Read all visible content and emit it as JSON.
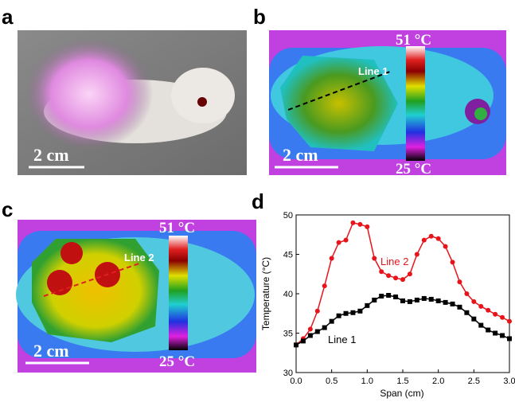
{
  "panels": [
    {
      "label": "a",
      "scale_bar": "2 cm"
    },
    {
      "label": "b",
      "scale_bar": "2 cm",
      "line_label": "Line 1",
      "colorbar_max": "51 °C",
      "colorbar_min": "25 °C"
    },
    {
      "label": "c",
      "scale_bar": "2 cm",
      "line_label": "Line 2",
      "colorbar_max": "51 °C",
      "colorbar_min": "25 °C"
    },
    {
      "label": "d"
    }
  ],
  "chart_data": {
    "type": "line",
    "x_label": "Span (cm)",
    "y_label": "Temperature (°C)",
    "x": [
      0,
      0.1,
      0.2,
      0.3,
      0.4,
      0.5,
      0.6,
      0.7,
      0.8,
      0.9,
      1.0,
      1.1,
      1.2,
      1.3,
      1.4,
      1.5,
      1.6,
      1.7,
      1.8,
      1.9,
      2.0,
      2.1,
      2.2,
      2.3,
      2.4,
      2.5,
      2.6,
      2.7,
      2.8,
      2.9,
      3.0
    ],
    "series": [
      {
        "name": "Line 2",
        "color": "#e8141c",
        "marker": "circle",
        "values": [
          33.5,
          34.3,
          35.5,
          37.8,
          41,
          44.5,
          46.5,
          46.8,
          49,
          48.8,
          48.5,
          44.5,
          42.8,
          42.3,
          42,
          41.8,
          42.5,
          45,
          46.8,
          47.3,
          47,
          46,
          44,
          41.5,
          40,
          39,
          38.4,
          37.9,
          37.4,
          37,
          36.5
        ]
      },
      {
        "name": "Line 1",
        "color": "#000000",
        "marker": "square",
        "values": [
          33.5,
          34,
          34.7,
          35.2,
          35.7,
          36.5,
          37.2,
          37.5,
          37.6,
          37.8,
          38.5,
          39.2,
          39.7,
          39.8,
          39.6,
          39.1,
          39,
          39.2,
          39.4,
          39.3,
          39.1,
          38.9,
          38.7,
          38.3,
          37.6,
          36.8,
          36,
          35.4,
          35,
          34.7,
          34.3
        ]
      }
    ],
    "xlim": [
      0,
      3
    ],
    "ylim": [
      30,
      50
    ],
    "xticks": [
      {
        "value": 0,
        "label": "0.0"
      },
      {
        "value": 0.5,
        "label": "0.5"
      },
      {
        "value": 1,
        "label": "1.0"
      },
      {
        "value": 1.5,
        "label": "1.5"
      },
      {
        "value": 2,
        "label": "2.0"
      },
      {
        "value": 2.5,
        "label": "2.5"
      },
      {
        "value": 3,
        "label": "3.0"
      }
    ],
    "yticks": [
      30,
      35,
      40,
      45,
      50
    ]
  }
}
